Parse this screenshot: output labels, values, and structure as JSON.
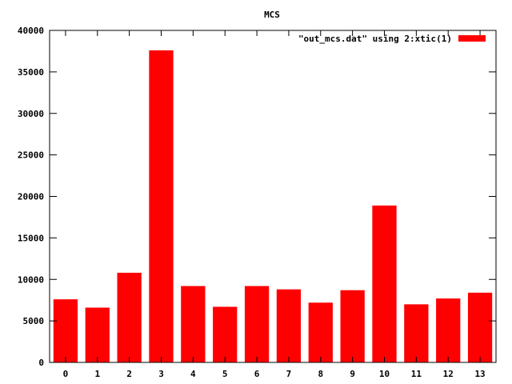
{
  "chart_data": {
    "type": "bar",
    "title": "MCS",
    "xlabel": "",
    "ylabel": "",
    "ylim": [
      0,
      40000
    ],
    "yticks": [
      0,
      5000,
      10000,
      15000,
      20000,
      25000,
      30000,
      35000,
      40000
    ],
    "categories": [
      "0",
      "1",
      "2",
      "3",
      "4",
      "5",
      "6",
      "7",
      "8",
      "9",
      "10",
      "11",
      "12",
      "13"
    ],
    "series": [
      {
        "name": "\"out_mcs.dat\" using 2:xtic(1)",
        "color": "#ff0000",
        "values": [
          7600,
          6600,
          10800,
          37600,
          9200,
          6700,
          9200,
          8800,
          7200,
          8700,
          18900,
          7000,
          7700,
          8400
        ]
      }
    ],
    "legend": "top-right",
    "grid": false
  }
}
